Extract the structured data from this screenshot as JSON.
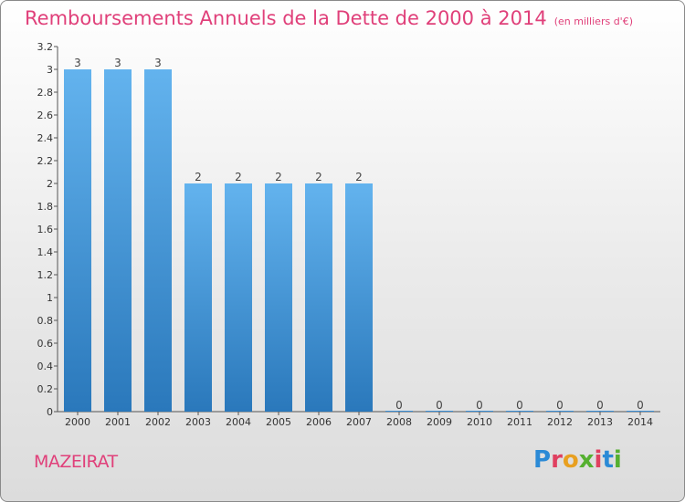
{
  "header": {
    "title": "Remboursements Annuels de la Dette de 2000 à 2014",
    "subtitle": "(en milliers d'€)"
  },
  "footer": {
    "commune": "MAZEIRAT",
    "logo_text": "Proxiti"
  },
  "colors": {
    "bar": "#3d8fd6",
    "bar_light": "#63b3ee",
    "title": "#e0407a"
  },
  "chart_data": {
    "type": "bar",
    "categories": [
      "2000",
      "2001",
      "2002",
      "2003",
      "2004",
      "2005",
      "2006",
      "2007",
      "2008",
      "2009",
      "2010",
      "2011",
      "2012",
      "2013",
      "2014"
    ],
    "values": [
      3,
      3,
      3,
      2,
      2,
      2,
      2,
      2,
      0,
      0,
      0,
      0,
      0,
      0,
      0
    ],
    "data_labels": [
      "3",
      "3",
      "3",
      "2",
      "2",
      "2",
      "2",
      "2",
      "0",
      "0",
      "0",
      "0",
      "0",
      "0",
      "0"
    ],
    "y_ticks": [
      "0",
      "0.2",
      "0.4",
      "0.6",
      "0.8",
      "1",
      "1.2",
      "1.4",
      "1.6",
      "1.8",
      "2",
      "2.2",
      "2.4",
      "2.6",
      "2.8",
      "3",
      "3.2"
    ],
    "ylim": [
      0,
      3.2
    ],
    "grid": false,
    "title": "Remboursements Annuels de la Dette de 2000 à 2014",
    "xlabel": "",
    "ylabel": ""
  }
}
